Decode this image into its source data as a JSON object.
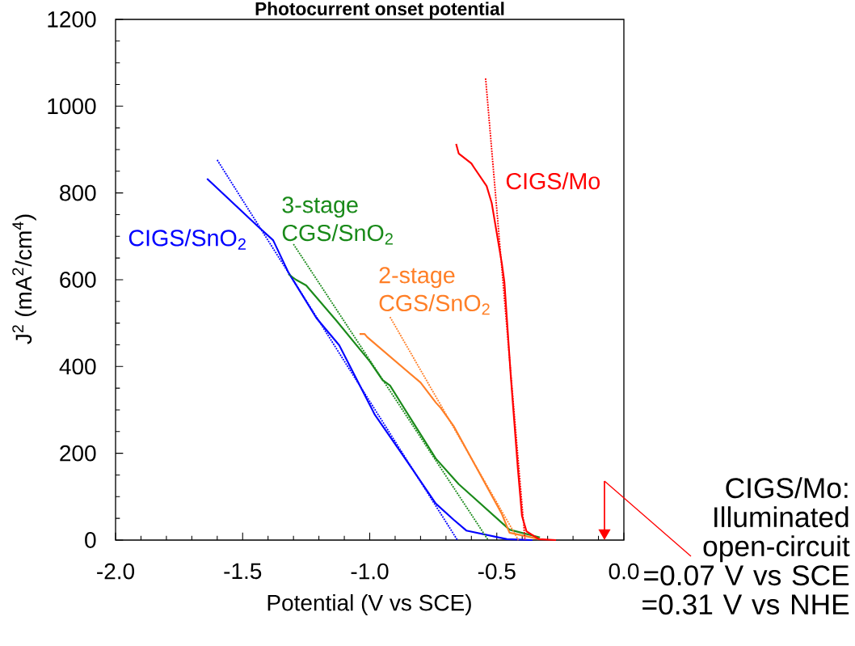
{
  "chart_data": {
    "type": "line",
    "title": "Photocurrent onset potential",
    "xlabel": "Potential (V vs SCE)",
    "ylabel": "J$^{2}$ (mA$^{2}$/cm$^{4}$)",
    "xlim": [
      -2,
      0
    ],
    "ylim": [
      0,
      1200
    ],
    "xticks": [
      {
        "value": -2,
        "label": "-2.0"
      },
      {
        "value": -1.5,
        "label": "-1.5"
      },
      {
        "value": -1,
        "label": "-1.0"
      },
      {
        "value": -0.5,
        "label": "-0.5"
      },
      {
        "value": 0,
        "label": "0.0"
      }
    ],
    "yticks": [
      0,
      200,
      400,
      600,
      800,
      1000,
      1200
    ],
    "grid": false,
    "marker": "none",
    "series": [
      {
        "name": "CIGS/SnO$_{2}$",
        "color": "#0000ff",
        "line_style": "solid",
        "x": [
          -1.64,
          -1.44,
          -1.38,
          -1.32,
          -1.21,
          -1.12,
          -1.05,
          -0.98,
          -0.87,
          -0.74,
          -0.67,
          -0.62,
          -0.46,
          -0.36
        ],
        "values": [
          833,
          723,
          691,
          617,
          512,
          449,
          369,
          289,
          196,
          84,
          47,
          22,
          2,
          0
        ]
      },
      {
        "name": "3-stage CGS/SnO$_{2}$",
        "color": "#1a8a1a",
        "line_style": "solid",
        "x": [
          -1.32,
          -1.29,
          -1.25,
          -1.13,
          -1.0,
          -0.95,
          -0.92,
          -0.84,
          -0.74,
          -0.67,
          -0.65,
          -0.45,
          -0.33
        ],
        "values": [
          613,
          600,
          587,
          505,
          412,
          369,
          356,
          281,
          188,
          142,
          129,
          24,
          6
        ]
      },
      {
        "name": "2-stage CGS/SnO$_{2}$",
        "color": "#ff7f27",
        "line_style": "solid",
        "x": [
          -1.04,
          -1.02,
          -1.01,
          -0.8,
          -0.74,
          -0.72,
          -0.67,
          -0.48,
          -0.45,
          -0.33
        ],
        "values": [
          475,
          475,
          468,
          363,
          317,
          304,
          263,
          60,
          17,
          2
        ]
      },
      {
        "name": "CIGS/Mo",
        "color": "#ff0000",
        "line_style": "solid",
        "x": [
          -0.66,
          -0.65,
          -0.6,
          -0.59,
          -0.54,
          -0.52,
          -0.48,
          -0.47,
          -0.445,
          -0.417,
          -0.401,
          -0.383,
          -0.334,
          -0.267
        ],
        "values": [
          913,
          891,
          868,
          859,
          816,
          777,
          637,
          594,
          378,
          164,
          56,
          20,
          2,
          0
        ]
      },
      {
        "color": "#0000ff",
        "line_style": "dotted",
        "x": [
          -1.6,
          -0.655
        ],
        "values": [
          876,
          0
        ]
      },
      {
        "color": "#1a8a1a",
        "line_style": "dotted",
        "x": [
          -1.3,
          -0.534
        ],
        "values": [
          682,
          0
        ]
      },
      {
        "color": "#ff7f27",
        "line_style": "dotted",
        "x": [
          -0.92,
          -0.415
        ],
        "values": [
          514,
          0
        ]
      },
      {
        "color": "#ff0000",
        "line_style": "dotted",
        "x": [
          -0.544,
          -0.389
        ],
        "values": [
          1064,
          0
        ]
      }
    ],
    "annotations": [
      "CIGS/Mo: Illuminated open-circuit =0.07 V vs SCE =0.31 V vs NHE"
    ]
  }
}
